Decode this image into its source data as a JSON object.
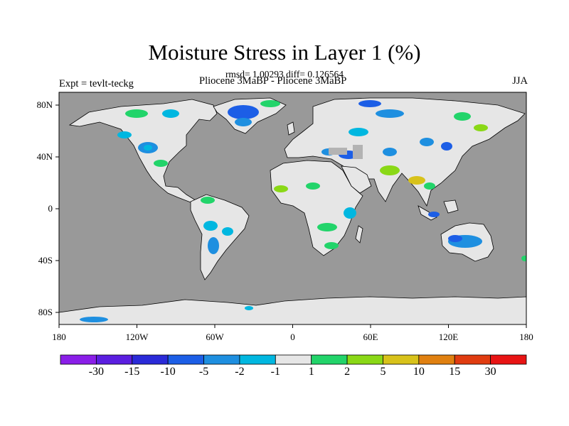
{
  "map": {
    "title": "Moisture Stress in Layer 1 (%)",
    "stats": "rmsd= 1.00293 diff= 0.126564",
    "experiment": "Expt = tevlt-teckg",
    "comparison": "Pliocene   3MaBP - Pliocene   3MaBP",
    "season": "JJA",
    "lon_ticks": [
      "180",
      "120W",
      "60W",
      "0",
      "60E",
      "120E",
      "180"
    ],
    "lat_ticks": [
      "80N",
      "40N",
      "0",
      "40S",
      "80S"
    ],
    "ocean_color": "#999999",
    "land_color": "#e6e6e6",
    "missing_color": "#b3b3b3"
  },
  "colorbar": {
    "labels": [
      "-30",
      "-15",
      "-10",
      "-5",
      "-2",
      "-1",
      "1",
      "2",
      "5",
      "10",
      "15",
      "30"
    ],
    "colors": [
      "#8a1ee8",
      "#5b1ee0",
      "#2a2ad8",
      "#1c5ee6",
      "#1e8fe0",
      "#00b7e0",
      "#e6e6e6",
      "#22d46a",
      "#8ad816",
      "#d8c21a",
      "#e08010",
      "#e03c10",
      "#e81414"
    ]
  }
}
